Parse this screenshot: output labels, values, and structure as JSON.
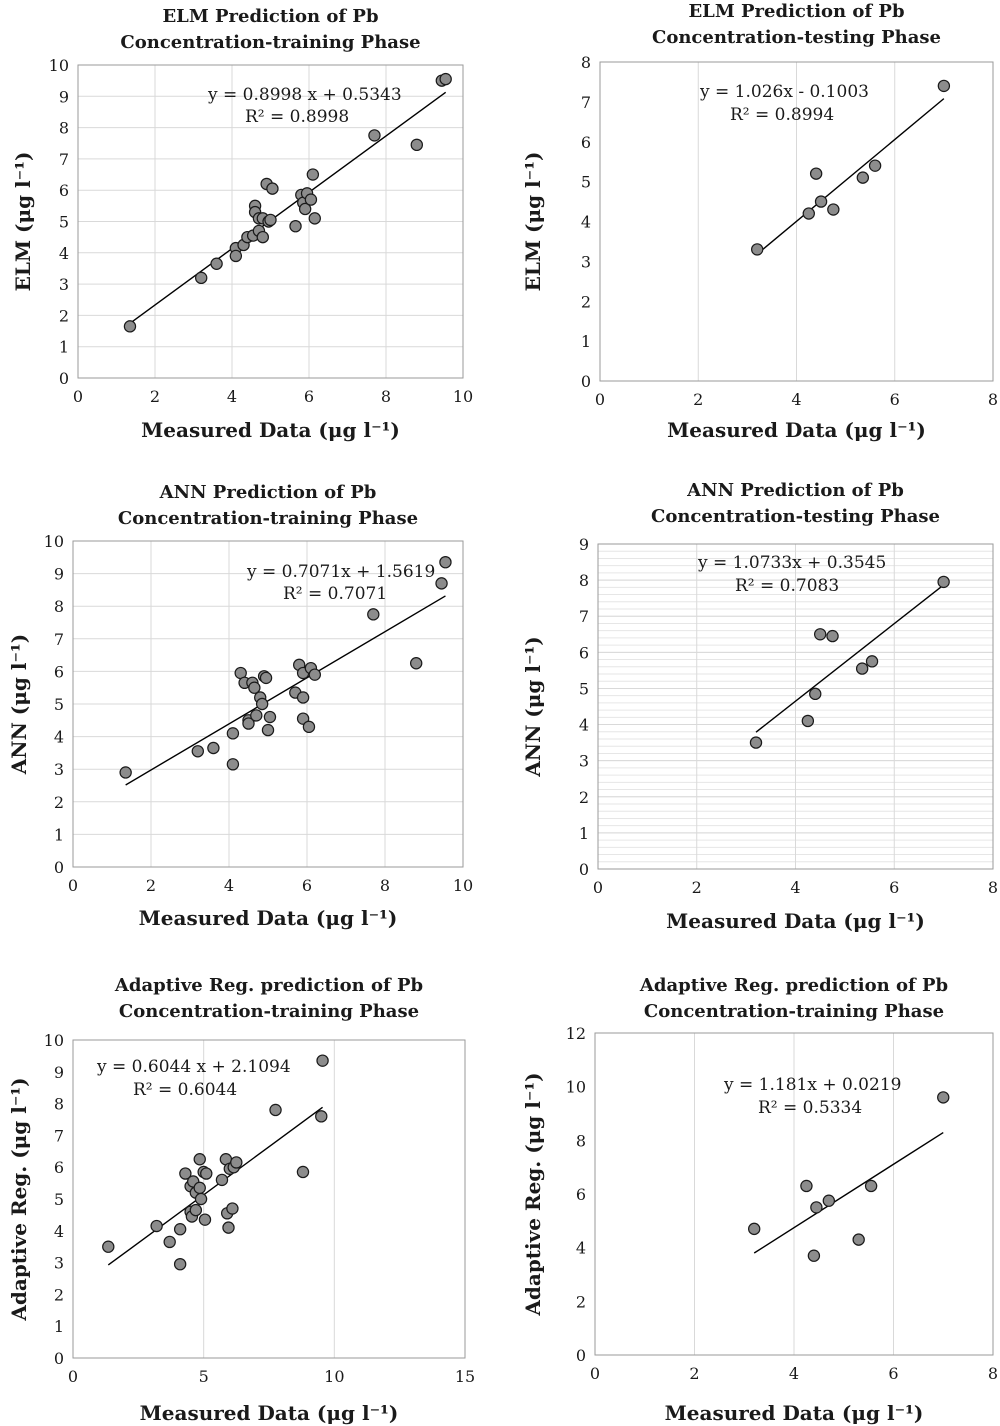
{
  "chart_data": [
    {
      "type": "scatter",
      "title": [
        "ELM Prediction of Pb",
        "Concentration-training Phase"
      ],
      "xlabel": "Measured Data (μg l⁻¹)",
      "ylabel": "ELM (μg l⁻¹)",
      "xlim": [
        0,
        10
      ],
      "ylim": [
        0,
        10
      ],
      "xticks": [
        "0",
        "2",
        "4",
        "6",
        "8",
        "10"
      ],
      "yticks": [
        "0",
        "1",
        "2",
        "3",
        "4",
        "5",
        "6",
        "7",
        "8",
        "9",
        "10"
      ],
      "grid": "both",
      "equation": "y = 0.8998 x + 0.5343",
      "r2": "R² = 0.8998",
      "trendline": {
        "slope": 0.8998,
        "intercept": 0.5343,
        "x_range": [
          1.35,
          9.55
        ]
      },
      "points": [
        [
          1.35,
          1.65
        ],
        [
          3.2,
          3.2
        ],
        [
          3.6,
          3.65
        ],
        [
          4.1,
          4.15
        ],
        [
          4.1,
          3.9
        ],
        [
          4.3,
          4.25
        ],
        [
          4.4,
          4.5
        ],
        [
          4.55,
          4.55
        ],
        [
          4.6,
          5.5
        ],
        [
          4.6,
          5.3
        ],
        [
          4.7,
          5.1
        ],
        [
          4.7,
          4.7
        ],
        [
          4.8,
          4.5
        ],
        [
          4.8,
          5.1
        ],
        [
          4.9,
          6.2
        ],
        [
          4.95,
          5.0
        ],
        [
          5.0,
          5.05
        ],
        [
          5.05,
          6.05
        ],
        [
          5.65,
          4.85
        ],
        [
          5.8,
          5.85
        ],
        [
          5.85,
          5.6
        ],
        [
          5.9,
          5.4
        ],
        [
          5.95,
          5.9
        ],
        [
          6.05,
          5.7
        ],
        [
          6.1,
          6.5
        ],
        [
          6.15,
          5.1
        ],
        [
          7.7,
          7.75
        ],
        [
          8.8,
          7.45
        ],
        [
          9.45,
          9.5
        ],
        [
          9.55,
          9.55
        ]
      ]
    },
    {
      "type": "scatter",
      "title": [
        "ELM Prediction of Pb",
        "Concentration-testing Phase"
      ],
      "xlabel": "Measured Data (μg l⁻¹)",
      "ylabel": "ELM (μg l⁻¹)",
      "xlim": [
        0,
        8
      ],
      "ylim": [
        0,
        8
      ],
      "xticks": [
        "0",
        "2",
        "4",
        "6",
        "8"
      ],
      "yticks": [
        "0",
        "1",
        "2",
        "3",
        "4",
        "5",
        "6",
        "7",
        "8"
      ],
      "grid": "vertical",
      "equation": "y = 1.026x - 0.1003",
      "r2": "R² = 0.8994",
      "trendline": {
        "slope": 1.026,
        "intercept": -0.1003,
        "x_range": [
          3.2,
          7.0
        ]
      },
      "points": [
        [
          3.2,
          3.3
        ],
        [
          4.25,
          4.2
        ],
        [
          4.4,
          5.2
        ],
        [
          4.5,
          4.5
        ],
        [
          4.75,
          4.3
        ],
        [
          5.35,
          5.1
        ],
        [
          5.6,
          5.4
        ],
        [
          7.0,
          7.4
        ]
      ]
    },
    {
      "type": "scatter",
      "title": [
        "ANN Prediction of Pb",
        "Concentration-training Phase"
      ],
      "xlabel": "Measured Data (μg l⁻¹)",
      "ylabel": "ANN (μg l⁻¹)",
      "xlim": [
        0,
        10
      ],
      "ylim": [
        0,
        10
      ],
      "xticks": [
        "0",
        "2",
        "4",
        "6",
        "8",
        "10"
      ],
      "yticks": [
        "0",
        "1",
        "2",
        "3",
        "4",
        "5",
        "6",
        "7",
        "8",
        "9",
        "10"
      ],
      "grid": "both",
      "equation": "y = 0.7071x + 1.5619",
      "r2": "R² = 0.7071",
      "trendline": {
        "slope": 0.7071,
        "intercept": 1.5619,
        "x_range": [
          1.35,
          9.55
        ]
      },
      "points": [
        [
          1.35,
          2.9
        ],
        [
          3.2,
          3.55
        ],
        [
          3.6,
          3.65
        ],
        [
          4.1,
          4.1
        ],
        [
          4.1,
          3.15
        ],
        [
          4.3,
          5.95
        ],
        [
          4.4,
          5.65
        ],
        [
          4.5,
          4.5
        ],
        [
          4.5,
          4.4
        ],
        [
          4.6,
          5.65
        ],
        [
          4.65,
          5.5
        ],
        [
          4.7,
          4.65
        ],
        [
          4.8,
          5.2
        ],
        [
          4.85,
          5.0
        ],
        [
          4.9,
          5.85
        ],
        [
          4.95,
          5.8
        ],
        [
          5.0,
          4.2
        ],
        [
          5.05,
          4.6
        ],
        [
          5.7,
          5.35
        ],
        [
          5.8,
          6.2
        ],
        [
          5.9,
          5.95
        ],
        [
          5.9,
          4.55
        ],
        [
          5.9,
          5.2
        ],
        [
          6.05,
          4.3
        ],
        [
          6.1,
          6.1
        ],
        [
          6.2,
          5.9
        ],
        [
          7.7,
          7.75
        ],
        [
          8.8,
          6.25
        ],
        [
          9.45,
          8.7
        ],
        [
          9.55,
          9.35
        ]
      ]
    },
    {
      "type": "scatter",
      "title": [
        "ANN Prediction of Pb",
        "Concentration-testing Phase"
      ],
      "xlabel": "Measured Data (μg l⁻¹)",
      "ylabel": "ANN (μg l⁻¹)",
      "xlim": [
        0,
        8
      ],
      "ylim": [
        0,
        9
      ],
      "xticks": [
        "0",
        "2",
        "4",
        "6",
        "8"
      ],
      "yticks": [
        "0",
        "1",
        "2",
        "3",
        "4",
        "5",
        "6",
        "7",
        "8",
        "9"
      ],
      "grid": "both-fine",
      "equation": "y = 1.0733x + 0.3545",
      "r2": "R² = 0.7083",
      "trendline": {
        "slope": 1.0733,
        "intercept": 0.3545,
        "x_range": [
          3.2,
          7.0
        ]
      },
      "points": [
        [
          3.2,
          3.5
        ],
        [
          4.25,
          4.1
        ],
        [
          4.4,
          4.85
        ],
        [
          4.5,
          6.5
        ],
        [
          4.75,
          6.45
        ],
        [
          5.35,
          5.55
        ],
        [
          5.55,
          5.75
        ],
        [
          7.0,
          7.95
        ]
      ]
    },
    {
      "type": "scatter",
      "title": [
        "Adaptive Reg. prediction of Pb",
        "Concentration-training Phase"
      ],
      "xlabel": "Measured Data (μg l⁻¹)",
      "ylabel": "Adaptive Reg. (μg l⁻¹)",
      "xlim": [
        0,
        15
      ],
      "ylim": [
        0,
        10
      ],
      "xticks": [
        "0",
        "5",
        "10",
        "15"
      ],
      "yticks": [
        "0",
        "1",
        "2",
        "3",
        "4",
        "5",
        "6",
        "7",
        "8",
        "9",
        "10"
      ],
      "grid": "vertical",
      "equation": "y = 0.6044 x + 2.1094",
      "r2": "R² = 0.6044",
      "trendline": {
        "slope": 0.6044,
        "intercept": 2.1094,
        "x_range": [
          1.35,
          9.55
        ]
      },
      "points": [
        [
          1.35,
          3.5
        ],
        [
          3.2,
          4.15
        ],
        [
          3.7,
          3.65
        ],
        [
          4.1,
          4.05
        ],
        [
          4.1,
          2.95
        ],
        [
          4.3,
          5.8
        ],
        [
          4.5,
          5.4
        ],
        [
          4.5,
          4.6
        ],
        [
          4.55,
          4.45
        ],
        [
          4.6,
          5.55
        ],
        [
          4.7,
          5.2
        ],
        [
          4.7,
          4.65
        ],
        [
          4.85,
          5.35
        ],
        [
          4.85,
          6.25
        ],
        [
          4.9,
          5.0
        ],
        [
          5.0,
          5.85
        ],
        [
          5.05,
          4.35
        ],
        [
          5.1,
          5.8
        ],
        [
          5.7,
          5.6
        ],
        [
          5.85,
          6.25
        ],
        [
          5.9,
          4.55
        ],
        [
          5.95,
          4.1
        ],
        [
          6.0,
          5.95
        ],
        [
          6.1,
          4.7
        ],
        [
          6.15,
          6.0
        ],
        [
          6.25,
          6.15
        ],
        [
          7.75,
          7.8
        ],
        [
          8.8,
          5.85
        ],
        [
          9.5,
          7.6
        ],
        [
          9.55,
          9.35
        ]
      ]
    },
    {
      "type": "scatter",
      "title": [
        "Adaptive Reg. prediction of Pb",
        "Concentration-training Phase"
      ],
      "xlabel": "Measured Data (μg l⁻¹)",
      "ylabel": "Adaptive Reg. (μg l⁻¹)",
      "xlim": [
        0,
        8
      ],
      "ylim": [
        0,
        12
      ],
      "xticks": [
        "0",
        "2",
        "4",
        "6",
        "8"
      ],
      "yticks": [
        "0",
        "2",
        "4",
        "6",
        "8",
        "10",
        "12"
      ],
      "grid": "vertical",
      "equation": "y = 1.181x + 0.0219",
      "r2": "R² = 0.5334",
      "trendline": {
        "slope": 1.181,
        "intercept": 0.0219,
        "x_range": [
          3.2,
          7.0
        ]
      },
      "points": [
        [
          3.2,
          4.7
        ],
        [
          4.25,
          6.3
        ],
        [
          4.4,
          3.7
        ],
        [
          4.45,
          5.5
        ],
        [
          4.7,
          5.75
        ],
        [
          5.3,
          4.3
        ],
        [
          5.55,
          6.3
        ],
        [
          7.0,
          9.6
        ]
      ]
    }
  ]
}
